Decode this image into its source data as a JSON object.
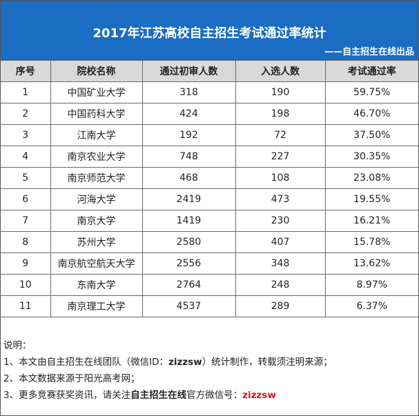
{
  "header": {
    "title": "2017年江苏高校自主招生考试通过率统计",
    "subtitle": "——自主招生在线出品"
  },
  "table": {
    "columns": [
      "序号",
      "院校名称",
      "通过初审人数",
      "入选人数",
      "考试通过率"
    ],
    "rows": [
      [
        1,
        "中国矿业大学",
        318,
        190,
        "59.75%"
      ],
      [
        2,
        "中国药科大学",
        424,
        198,
        "46.70%"
      ],
      [
        3,
        "江南大学",
        192,
        72,
        "37.50%"
      ],
      [
        4,
        "南京农业大学",
        748,
        227,
        "30.35%"
      ],
      [
        5,
        "南京师范大学",
        468,
        108,
        "23.08%"
      ],
      [
        6,
        "河海大学",
        2419,
        473,
        "19.55%"
      ],
      [
        7,
        "南京大学",
        1419,
        230,
        "16.21%"
      ],
      [
        8,
        "苏州大学",
        2580,
        407,
        "15.78%"
      ],
      [
        9,
        "南京航空航天大学",
        2556,
        348,
        "13.62%"
      ],
      [
        10,
        "东南大学",
        2764,
        248,
        "8.97%"
      ],
      [
        11,
        "南京理工大学",
        4537,
        289,
        "6.37%"
      ]
    ]
  },
  "notes": {
    "label": "说明：",
    "lines": [
      [
        "1、本文由自主招生在线团队（微信ID：",
        "zizzsw",
        "）统计制作，转载须注明来源；"
      ],
      [
        "2、本文数据来源于阳光高考网；"
      ],
      [
        "3、更多竞赛获奖资讯，请关注",
        "自主招生在线",
        "官方微信号：",
        "zizzsw"
      ]
    ]
  }
}
